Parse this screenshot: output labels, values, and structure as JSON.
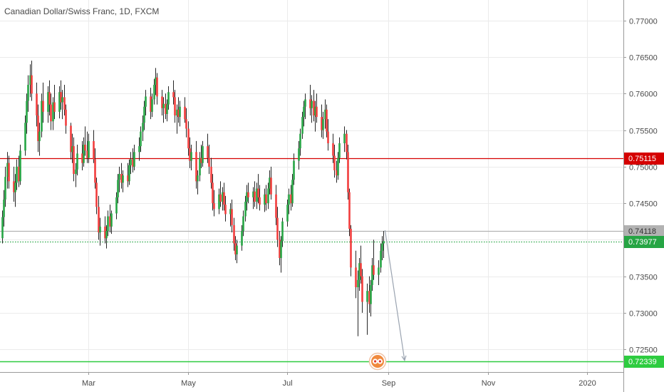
{
  "chart_data": {
    "type": "candlestick",
    "title": "Canadian Dollar/Swiss Franc, 1D, FXCM",
    "x_ticks": [
      "Mar",
      "May",
      "Jul",
      "Sep",
      "Nov",
      "2020"
    ],
    "y_ticks": [
      "0.72500",
      "0.73000",
      "0.73500",
      "0.74000",
      "0.74500",
      "0.75000",
      "0.75500",
      "0.76000",
      "0.76500",
      "0.77000"
    ],
    "ylim": [
      0.7219,
      0.7728
    ],
    "grid": true,
    "colors": {
      "up": "#26a544",
      "down": "#f23d3d",
      "wick": "#262626",
      "grid": "#ebebeb",
      "axis": "#9a9a9a"
    },
    "horizontal_lines": [
      {
        "name": "resistance",
        "value": 0.75115,
        "label": "0.75115",
        "color": "#d50000"
      },
      {
        "name": "previous-close",
        "value": 0.74118,
        "label": "0.74118",
        "color": "#b2b2b2"
      },
      {
        "name": "last-price",
        "value": 0.73977,
        "label": "0.73977",
        "color": "#26a544",
        "dotted": true
      },
      {
        "name": "target",
        "value": 0.72339,
        "label": "0.72339",
        "color": "#2ecc40"
      }
    ],
    "annotation_arrow": {
      "from": {
        "x": "2019-08-30",
        "y": 0.7413
      },
      "to": {
        "x": "2019-09-11",
        "y": 0.7235
      },
      "color": "#9aa3b0"
    },
    "candles": [
      [
        "2019-01-03",
        0.7388,
        0.7408,
        0.736,
        0.7382
      ],
      [
        "2019-01-04",
        0.7382,
        0.7425,
        0.7352,
        0.7402
      ],
      [
        "2019-01-07",
        0.7402,
        0.744,
        0.7395,
        0.7431
      ],
      [
        "2019-01-08",
        0.7431,
        0.7468,
        0.7418,
        0.7455
      ],
      [
        "2019-01-09",
        0.7455,
        0.75,
        0.7445,
        0.7486
      ],
      [
        "2019-01-10",
        0.7486,
        0.752,
        0.747,
        0.7505
      ],
      [
        "2019-01-11",
        0.7505,
        0.7515,
        0.747,
        0.748
      ],
      [
        "2019-01-14",
        0.748,
        0.75,
        0.7452,
        0.7465
      ],
      [
        "2019-01-15",
        0.7465,
        0.749,
        0.7445,
        0.7478
      ],
      [
        "2019-01-16",
        0.7478,
        0.751,
        0.7468,
        0.75
      ],
      [
        "2019-01-17",
        0.75,
        0.7515,
        0.7472,
        0.748
      ],
      [
        "2019-01-18",
        0.748,
        0.753,
        0.7475,
        0.7522
      ],
      [
        "2019-01-21",
        0.7522,
        0.757,
        0.7515,
        0.756
      ],
      [
        "2019-01-22",
        0.756,
        0.76,
        0.7545,
        0.759
      ],
      [
        "2019-01-23",
        0.759,
        0.7625,
        0.7575,
        0.7612
      ],
      [
        "2019-01-24",
        0.7612,
        0.764,
        0.7595,
        0.7625
      ],
      [
        "2019-01-25",
        0.7625,
        0.7645,
        0.759,
        0.76
      ],
      [
        "2019-01-28",
        0.76,
        0.7615,
        0.7555,
        0.757
      ],
      [
        "2019-01-29",
        0.757,
        0.7585,
        0.752,
        0.7535
      ],
      [
        "2019-01-30",
        0.7535,
        0.756,
        0.7515,
        0.7548
      ],
      [
        "2019-01-31",
        0.7548,
        0.76,
        0.754,
        0.759
      ],
      [
        "2019-02-01",
        0.759,
        0.7615,
        0.756,
        0.7575
      ],
      [
        "2019-02-04",
        0.7575,
        0.761,
        0.756,
        0.7602
      ],
      [
        "2019-02-05",
        0.7602,
        0.7618,
        0.757,
        0.7585
      ],
      [
        "2019-02-06",
        0.7585,
        0.76,
        0.755,
        0.7562
      ],
      [
        "2019-02-07",
        0.7562,
        0.7595,
        0.755,
        0.7588
      ],
      [
        "2019-02-08",
        0.7588,
        0.7612,
        0.7565,
        0.7575
      ],
      [
        "2019-02-11",
        0.7575,
        0.761,
        0.7566,
        0.7602
      ],
      [
        "2019-02-12",
        0.7602,
        0.7618,
        0.7578,
        0.7588
      ],
      [
        "2019-02-13",
        0.7588,
        0.7605,
        0.7565,
        0.7595
      ],
      [
        "2019-02-14",
        0.7595,
        0.7612,
        0.757,
        0.7578
      ],
      [
        "2019-02-15",
        0.7578,
        0.7585,
        0.7545,
        0.7556
      ],
      [
        "2019-02-18",
        0.7556,
        0.756,
        0.751,
        0.752
      ],
      [
        "2019-02-19",
        0.752,
        0.7545,
        0.7505,
        0.7528
      ],
      [
        "2019-02-20",
        0.7528,
        0.754,
        0.748,
        0.749
      ],
      [
        "2019-02-21",
        0.749,
        0.7505,
        0.7472,
        0.7496
      ],
      [
        "2019-02-22",
        0.7496,
        0.753,
        0.7488,
        0.7518
      ],
      [
        "2019-02-25",
        0.7518,
        0.7535,
        0.7495,
        0.7505
      ],
      [
        "2019-02-26",
        0.7505,
        0.754,
        0.75,
        0.753
      ],
      [
        "2019-02-27",
        0.753,
        0.7555,
        0.7515,
        0.7522
      ],
      [
        "2019-02-28",
        0.7522,
        0.7548,
        0.7505,
        0.7512
      ],
      [
        "2019-03-01",
        0.7512,
        0.7545,
        0.7505,
        0.7535
      ],
      [
        "2019-03-04",
        0.7535,
        0.755,
        0.7505,
        0.751
      ],
      [
        "2019-03-05",
        0.751,
        0.7525,
        0.747,
        0.7478
      ],
      [
        "2019-03-06",
        0.7478,
        0.7485,
        0.7435,
        0.7445
      ],
      [
        "2019-03-07",
        0.7445,
        0.746,
        0.74,
        0.741
      ],
      [
        "2019-03-08",
        0.741,
        0.743,
        0.7392,
        0.7418
      ],
      [
        "2019-03-11",
        0.7418,
        0.7432,
        0.7395,
        0.7402
      ],
      [
        "2019-03-12",
        0.7402,
        0.742,
        0.7388,
        0.7412
      ],
      [
        "2019-03-13",
        0.7412,
        0.744,
        0.7405,
        0.7432
      ],
      [
        "2019-03-14",
        0.7432,
        0.7448,
        0.741,
        0.7418
      ],
      [
        "2019-03-15",
        0.7418,
        0.744,
        0.7408,
        0.7436
      ],
      [
        "2019-03-18",
        0.7436,
        0.7465,
        0.7428,
        0.7458
      ],
      [
        "2019-03-19",
        0.7458,
        0.749,
        0.745,
        0.7482
      ],
      [
        "2019-03-20",
        0.7482,
        0.75,
        0.7465,
        0.749
      ],
      [
        "2019-03-21",
        0.749,
        0.7505,
        0.747,
        0.7478
      ],
      [
        "2019-03-22",
        0.7478,
        0.7495,
        0.7465,
        0.7488
      ],
      [
        "2019-03-25",
        0.7488,
        0.7505,
        0.7472,
        0.748
      ],
      [
        "2019-03-26",
        0.748,
        0.751,
        0.7475,
        0.7502
      ],
      [
        "2019-03-27",
        0.7502,
        0.752,
        0.749,
        0.751
      ],
      [
        "2019-03-28",
        0.751,
        0.7525,
        0.7492,
        0.75
      ],
      [
        "2019-03-29",
        0.75,
        0.753,
        0.7495,
        0.752
      ],
      [
        "2019-04-01",
        0.752,
        0.754,
        0.7508,
        0.7528
      ],
      [
        "2019-04-02",
        0.7528,
        0.7555,
        0.752,
        0.7548
      ],
      [
        "2019-04-03",
        0.7548,
        0.757,
        0.7535,
        0.756
      ],
      [
        "2019-04-04",
        0.756,
        0.759,
        0.755,
        0.7582
      ],
      [
        "2019-04-05",
        0.7582,
        0.7605,
        0.757,
        0.7596
      ],
      [
        "2019-04-08",
        0.7596,
        0.7608,
        0.7565,
        0.7575
      ],
      [
        "2019-04-09",
        0.7575,
        0.76,
        0.7568,
        0.7592
      ],
      [
        "2019-04-10",
        0.7592,
        0.762,
        0.7585,
        0.7612
      ],
      [
        "2019-04-11",
        0.7612,
        0.7635,
        0.7598,
        0.7622
      ],
      [
        "2019-04-12",
        0.7622,
        0.7628,
        0.7585,
        0.7596
      ],
      [
        "2019-04-15",
        0.7596,
        0.7605,
        0.757,
        0.758
      ],
      [
        "2019-04-16",
        0.758,
        0.7595,
        0.756,
        0.7586
      ],
      [
        "2019-04-17",
        0.7586,
        0.76,
        0.7565,
        0.7572
      ],
      [
        "2019-04-18",
        0.7572,
        0.7592,
        0.7562,
        0.7585
      ],
      [
        "2019-04-19",
        0.7585,
        0.761,
        0.7578,
        0.7602
      ],
      [
        "2019-04-22",
        0.7602,
        0.7618,
        0.7585,
        0.7595
      ],
      [
        "2019-04-23",
        0.7595,
        0.7605,
        0.756,
        0.757
      ],
      [
        "2019-04-24",
        0.757,
        0.7585,
        0.7545,
        0.7578
      ],
      [
        "2019-04-25",
        0.7578,
        0.7595,
        0.756,
        0.7568
      ],
      [
        "2019-04-26",
        0.7568,
        0.759,
        0.7555,
        0.7582
      ],
      [
        "2019-04-29",
        0.7582,
        0.7595,
        0.756,
        0.7565
      ],
      [
        "2019-04-30",
        0.7565,
        0.758,
        0.754,
        0.7552
      ],
      [
        "2019-05-01",
        0.7552,
        0.7562,
        0.7515,
        0.7525
      ],
      [
        "2019-05-02",
        0.7525,
        0.754,
        0.7498,
        0.7508
      ],
      [
        "2019-05-03",
        0.7508,
        0.753,
        0.7495,
        0.752
      ],
      [
        "2019-05-06",
        0.752,
        0.7535,
        0.747,
        0.748
      ],
      [
        "2019-05-07",
        0.748,
        0.7495,
        0.7462,
        0.7488
      ],
      [
        "2019-05-08",
        0.7488,
        0.752,
        0.748,
        0.7512
      ],
      [
        "2019-05-09",
        0.7512,
        0.753,
        0.7498,
        0.7505
      ],
      [
        "2019-05-10",
        0.7505,
        0.7535,
        0.75,
        0.7528
      ],
      [
        "2019-05-13",
        0.7528,
        0.7545,
        0.7505,
        0.7512
      ],
      [
        "2019-05-14",
        0.7512,
        0.753,
        0.749,
        0.75
      ],
      [
        "2019-05-15",
        0.75,
        0.7512,
        0.747,
        0.7478
      ],
      [
        "2019-05-16",
        0.7478,
        0.749,
        0.744,
        0.745
      ],
      [
        "2019-05-17",
        0.745,
        0.7468,
        0.7432,
        0.7442
      ],
      [
        "2019-05-20",
        0.7442,
        0.747,
        0.7435,
        0.7462
      ],
      [
        "2019-05-21",
        0.7462,
        0.748,
        0.7445,
        0.7452
      ],
      [
        "2019-05-22",
        0.7452,
        0.7472,
        0.744,
        0.7465
      ],
      [
        "2019-05-23",
        0.7465,
        0.7478,
        0.744,
        0.7448
      ],
      [
        "2019-05-24",
        0.7448,
        0.746,
        0.7425,
        0.7435
      ],
      [
        "2019-05-27",
        0.7435,
        0.745,
        0.7418,
        0.7442
      ],
      [
        "2019-05-28",
        0.7442,
        0.7455,
        0.741,
        0.742
      ],
      [
        "2019-05-29",
        0.742,
        0.743,
        0.7385,
        0.7395
      ],
      [
        "2019-05-30",
        0.7395,
        0.7405,
        0.7372,
        0.738
      ],
      [
        "2019-05-31",
        0.738,
        0.74,
        0.7368,
        0.7392
      ],
      [
        "2019-06-03",
        0.7392,
        0.742,
        0.7385,
        0.7412
      ],
      [
        "2019-06-04",
        0.7412,
        0.744,
        0.7405,
        0.7432
      ],
      [
        "2019-06-05",
        0.7432,
        0.746,
        0.7425,
        0.7452
      ],
      [
        "2019-06-06",
        0.7452,
        0.7475,
        0.744,
        0.7465
      ],
      [
        "2019-06-07",
        0.7465,
        0.7478,
        0.745,
        0.7458
      ],
      [
        "2019-06-10",
        0.7458,
        0.7472,
        0.7442,
        0.7466
      ],
      [
        "2019-06-11",
        0.7466,
        0.748,
        0.7445,
        0.7452
      ],
      [
        "2019-06-12",
        0.7452,
        0.7478,
        0.7442,
        0.747
      ],
      [
        "2019-06-13",
        0.747,
        0.749,
        0.745,
        0.7458
      ],
      [
        "2019-06-14",
        0.7458,
        0.7475,
        0.744,
        0.7448
      ],
      [
        "2019-06-17",
        0.7448,
        0.747,
        0.7438,
        0.7462
      ],
      [
        "2019-06-18",
        0.7462,
        0.7475,
        0.744,
        0.745
      ],
      [
        "2019-06-19",
        0.745,
        0.7478,
        0.7442,
        0.747
      ],
      [
        "2019-06-20",
        0.747,
        0.7495,
        0.7462,
        0.7485
      ],
      [
        "2019-06-21",
        0.7485,
        0.75,
        0.7455,
        0.7462
      ],
      [
        "2019-06-24",
        0.7462,
        0.7475,
        0.742,
        0.743
      ],
      [
        "2019-06-25",
        0.743,
        0.7445,
        0.739,
        0.74
      ],
      [
        "2019-06-26",
        0.74,
        0.7412,
        0.7365,
        0.7375
      ],
      [
        "2019-06-27",
        0.7375,
        0.7405,
        0.7355,
        0.7398
      ],
      [
        "2019-06-28",
        0.7398,
        0.743,
        0.739,
        0.7425
      ],
      [
        "2019-07-01",
        0.7425,
        0.7455,
        0.7418,
        0.7448
      ],
      [
        "2019-07-02",
        0.7448,
        0.747,
        0.7435,
        0.7462
      ],
      [
        "2019-07-03",
        0.7462,
        0.7475,
        0.744,
        0.745
      ],
      [
        "2019-07-04",
        0.745,
        0.749,
        0.7445,
        0.7482
      ],
      [
        "2019-07-05",
        0.7482,
        0.7518,
        0.7475,
        0.7508
      ],
      [
        "2019-07-08",
        0.7508,
        0.7535,
        0.7496,
        0.7525
      ],
      [
        "2019-07-09",
        0.7525,
        0.7552,
        0.7515,
        0.7545
      ],
      [
        "2019-07-10",
        0.7545,
        0.7575,
        0.7538,
        0.7568
      ],
      [
        "2019-07-11",
        0.7568,
        0.759,
        0.7555,
        0.7582
      ],
      [
        "2019-07-12",
        0.7582,
        0.76,
        0.7565,
        0.7592
      ],
      [
        "2019-07-15",
        0.7592,
        0.7612,
        0.757,
        0.758
      ],
      [
        "2019-07-16",
        0.758,
        0.7598,
        0.756,
        0.759
      ],
      [
        "2019-07-17",
        0.759,
        0.7605,
        0.7562,
        0.757
      ],
      [
        "2019-07-18",
        0.757,
        0.759,
        0.7548,
        0.7582
      ],
      [
        "2019-07-19",
        0.7582,
        0.76,
        0.756,
        0.7568
      ],
      [
        "2019-07-22",
        0.7568,
        0.7585,
        0.754,
        0.755
      ],
      [
        "2019-07-23",
        0.755,
        0.7575,
        0.7538,
        0.7565
      ],
      [
        "2019-07-24",
        0.7565,
        0.7592,
        0.7552,
        0.7578
      ],
      [
        "2019-07-25",
        0.7578,
        0.7585,
        0.754,
        0.7548
      ],
      [
        "2019-07-26",
        0.7548,
        0.7565,
        0.7522,
        0.7532
      ],
      [
        "2019-07-29",
        0.7532,
        0.7545,
        0.7505,
        0.7515
      ],
      [
        "2019-07-30",
        0.7515,
        0.753,
        0.7485,
        0.7495
      ],
      [
        "2019-07-31",
        0.7495,
        0.7508,
        0.7478,
        0.7488
      ],
      [
        "2019-08-01",
        0.7488,
        0.752,
        0.7482,
        0.7512
      ],
      [
        "2019-08-02",
        0.7512,
        0.754,
        0.7505,
        0.7532
      ],
      [
        "2019-08-05",
        0.7532,
        0.7555,
        0.752,
        0.7545
      ],
      [
        "2019-08-06",
        0.7545,
        0.755,
        0.751,
        0.752
      ],
      [
        "2019-08-07",
        0.752,
        0.753,
        0.7455,
        0.7465
      ],
      [
        "2019-08-08",
        0.7465,
        0.747,
        0.7405,
        0.7415
      ],
      [
        "2019-08-09",
        0.7415,
        0.742,
        0.735,
        0.7362
      ],
      [
        "2019-08-12",
        0.7362,
        0.7385,
        0.732,
        0.7335
      ],
      [
        "2019-08-13",
        0.7335,
        0.7358,
        0.7268,
        0.7345
      ],
      [
        "2019-08-14",
        0.7345,
        0.7375,
        0.733,
        0.7368
      ],
      [
        "2019-08-15",
        0.7368,
        0.7392,
        0.734,
        0.735
      ],
      [
        "2019-08-16",
        0.735,
        0.736,
        0.73,
        0.7315
      ],
      [
        "2019-08-19",
        0.7315,
        0.734,
        0.727,
        0.733
      ],
      [
        "2019-08-20",
        0.733,
        0.735,
        0.73,
        0.7312
      ],
      [
        "2019-08-21",
        0.7312,
        0.7345,
        0.7295,
        0.7338
      ],
      [
        "2019-08-22",
        0.7338,
        0.7375,
        0.733,
        0.7365
      ],
      [
        "2019-08-23",
        0.7365,
        0.74,
        0.7345,
        0.7352
      ],
      [
        "2019-08-26",
        0.7352,
        0.7372,
        0.7338,
        0.7362
      ],
      [
        "2019-08-27",
        0.7362,
        0.7395,
        0.7355,
        0.7385
      ],
      [
        "2019-08-28",
        0.7385,
        0.7405,
        0.7372,
        0.7395
      ],
      [
        "2019-08-29",
        0.7395,
        0.7412,
        0.7375,
        0.7398
      ]
    ]
  }
}
